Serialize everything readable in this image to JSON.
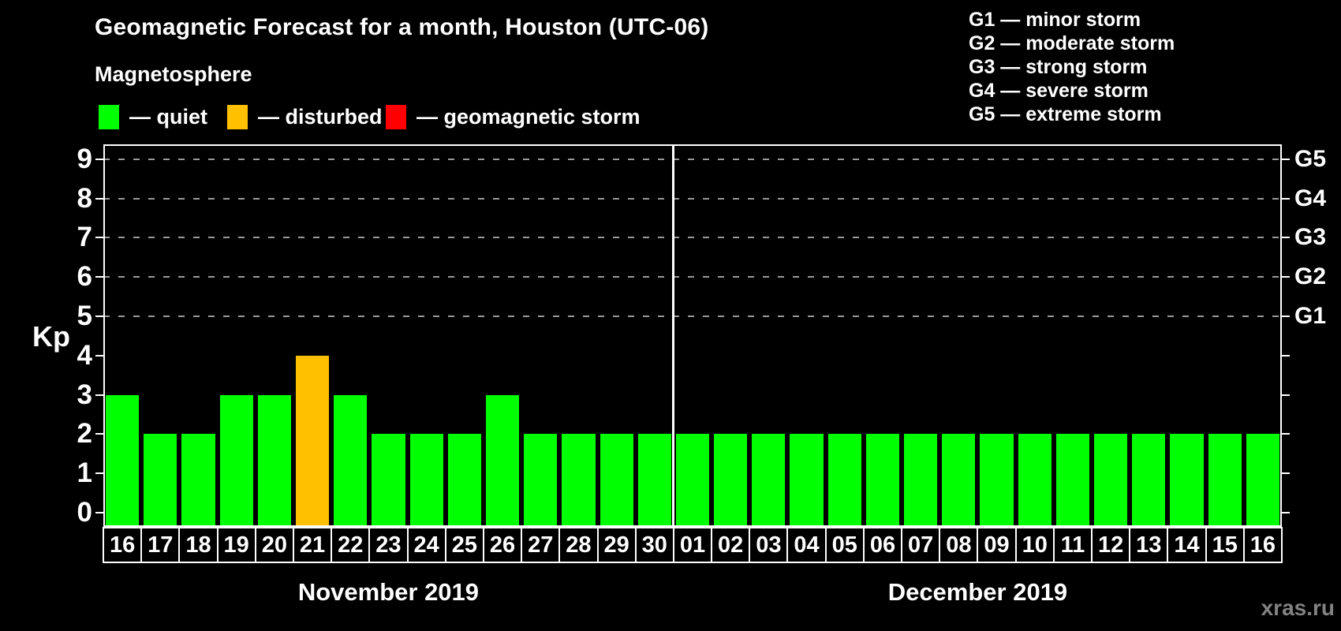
{
  "title": "Geomagnetic Forecast for a month, Houston (UTC-06)",
  "subtitle": "Magnetosphere",
  "legend": {
    "items": [
      {
        "name": "quiet",
        "label": "— quiet",
        "color": "#00ff00"
      },
      {
        "name": "disturbed",
        "label": "— disturbed",
        "color": "#ffc000"
      },
      {
        "name": "geomagnetic-storm",
        "label": "— geomagnetic storm",
        "color": "#ff0000"
      }
    ]
  },
  "g_legend": {
    "lines": [
      "G1 — minor storm",
      "G2 — moderate storm",
      "G3 — strong storm",
      "G4 — severe storm",
      "G5 — extreme storm"
    ]
  },
  "watermark": "xras.ru",
  "chart_data": {
    "type": "bar",
    "ylabel": "Kp",
    "ylim": [
      0,
      9
    ],
    "yticks": [
      0,
      1,
      2,
      3,
      4,
      5,
      6,
      7,
      8,
      9
    ],
    "gridlines_at": [
      5,
      6,
      7,
      8,
      9
    ],
    "grid": "dashed-horizontal",
    "legend_position": "top-left",
    "right_axis_labels": [
      {
        "text": "G1",
        "kp": 5
      },
      {
        "text": "G2",
        "kp": 6
      },
      {
        "text": "G3",
        "kp": 7
      },
      {
        "text": "G4",
        "kp": 8
      },
      {
        "text": "G5",
        "kp": 9
      }
    ],
    "months": [
      {
        "label": "November 2019",
        "days": 15
      },
      {
        "label": "December 2019",
        "days": 16
      }
    ],
    "categories": [
      "16",
      "17",
      "18",
      "19",
      "20",
      "21",
      "22",
      "23",
      "24",
      "25",
      "26",
      "27",
      "28",
      "29",
      "30",
      "01",
      "02",
      "03",
      "04",
      "05",
      "06",
      "07",
      "08",
      "09",
      "10",
      "11",
      "12",
      "13",
      "14",
      "15",
      "16"
    ],
    "values": [
      3,
      2,
      2,
      3,
      3,
      4,
      3,
      2,
      2,
      2,
      3,
      2,
      2,
      2,
      2,
      2,
      2,
      2,
      2,
      2,
      2,
      2,
      2,
      2,
      2,
      2,
      2,
      2,
      2,
      2,
      2
    ],
    "states": [
      "quiet",
      "quiet",
      "quiet",
      "quiet",
      "quiet",
      "disturbed",
      "quiet",
      "quiet",
      "quiet",
      "quiet",
      "quiet",
      "quiet",
      "quiet",
      "quiet",
      "quiet",
      "quiet",
      "quiet",
      "quiet",
      "quiet",
      "quiet",
      "quiet",
      "quiet",
      "quiet",
      "quiet",
      "quiet",
      "quiet",
      "quiet",
      "quiet",
      "quiet",
      "quiet",
      "quiet"
    ],
    "colors": {
      "quiet": "#00ff00",
      "disturbed": "#ffc000",
      "geomagnetic-storm": "#ff0000"
    }
  }
}
